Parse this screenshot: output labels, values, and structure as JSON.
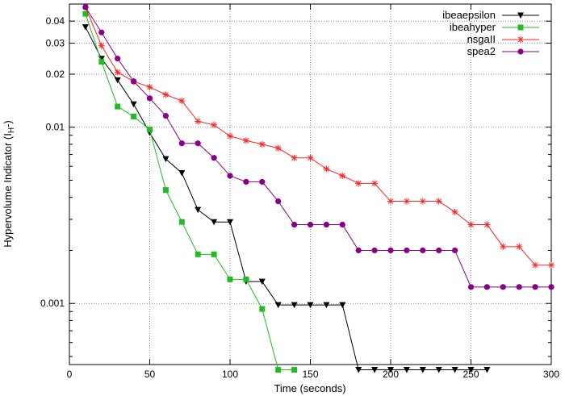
{
  "chart_data": {
    "type": "line",
    "xlabel": "Time (seconds)",
    "ylabel": {
      "main": "Hypervolume Indicator (I",
      "subscript": "H",
      "suffix": "-)"
    },
    "xlim": [
      0,
      300
    ],
    "ylim": [
      0.00045,
      0.05
    ],
    "yscale": "log",
    "grid": true,
    "legend_position": "top-right",
    "x_ticks": [
      {
        "value": 0,
        "label": "0"
      },
      {
        "value": 50,
        "label": "50"
      },
      {
        "value": 100,
        "label": "100"
      },
      {
        "value": 150,
        "label": "150"
      },
      {
        "value": 200,
        "label": "200"
      },
      {
        "value": 250,
        "label": "250"
      },
      {
        "value": 300,
        "label": "300"
      }
    ],
    "y_ticks": [
      {
        "value": 0.04,
        "label": "0.04"
      },
      {
        "value": 0.03,
        "label": "0.03"
      },
      {
        "value": 0.02,
        "label": "0.02"
      },
      {
        "value": 0.01,
        "label": "0.01"
      },
      {
        "value": 0.001,
        "label": "0.001"
      }
    ],
    "y_minor_ticks": [
      0.0005,
      0.0006,
      0.0007,
      0.0008,
      0.0009,
      0.002,
      0.003,
      0.004,
      0.005,
      0.006,
      0.007,
      0.008,
      0.009
    ],
    "series": [
      {
        "name": "ibeaepsilon",
        "color": "#000000",
        "marker": "triangle-down",
        "x": [
          10,
          20,
          30,
          40,
          50,
          60,
          70,
          80,
          90,
          100,
          110,
          120,
          130,
          140,
          150,
          160,
          170,
          180,
          190,
          200,
          210,
          220,
          230,
          240,
          250,
          260
        ],
        "y": [
          0.037,
          0.0245,
          0.0185,
          0.0135,
          0.0093,
          0.0066,
          0.0055,
          0.0034,
          0.0029,
          0.0029,
          0.00133,
          0.00133,
          0.00098,
          0.00098,
          0.00098,
          0.00098,
          0.00098,
          0.00042,
          0.00042,
          0.00042,
          0.00042,
          0.00042,
          0.00042,
          0.00042,
          0.00042,
          0.00042
        ]
      },
      {
        "name": "ibeahyper",
        "color": "#22bb22",
        "marker": "square",
        "x": [
          10,
          20,
          30,
          40,
          50,
          60,
          70,
          80,
          90,
          100,
          110,
          120,
          130,
          140
        ],
        "y": [
          0.044,
          0.0235,
          0.0131,
          0.0115,
          0.0097,
          0.0044,
          0.0029,
          0.0019,
          0.0019,
          0.00137,
          0.00137,
          0.00093,
          0.00042,
          0.00042
        ]
      },
      {
        "name": "nsgaII",
        "color": "#ff2222",
        "marker": "star",
        "x": [
          10,
          20,
          30,
          40,
          50,
          60,
          70,
          80,
          90,
          100,
          110,
          120,
          130,
          140,
          150,
          160,
          170,
          180,
          190,
          200,
          210,
          220,
          230,
          240,
          250,
          260,
          270,
          280,
          290,
          300
        ],
        "y": [
          0.048,
          0.029,
          0.0205,
          0.0182,
          0.0169,
          0.0153,
          0.0141,
          0.0108,
          0.0103,
          0.0089,
          0.0084,
          0.008,
          0.0076,
          0.0067,
          0.0067,
          0.0058,
          0.0053,
          0.0048,
          0.0048,
          0.0038,
          0.0038,
          0.0038,
          0.0038,
          0.0033,
          0.0028,
          0.0028,
          0.0021,
          0.0021,
          0.00165,
          0.00165
        ]
      },
      {
        "name": "spea2",
        "color": "#880088",
        "marker": "circle",
        "x": [
          10,
          20,
          30,
          40,
          50,
          60,
          70,
          80,
          90,
          100,
          110,
          120,
          130,
          140,
          150,
          160,
          170,
          180,
          190,
          200,
          210,
          220,
          230,
          240,
          250,
          260,
          270,
          280,
          290,
          300
        ],
        "y": [
          0.048,
          0.0345,
          0.0245,
          0.0182,
          0.0146,
          0.0116,
          0.0081,
          0.0081,
          0.0067,
          0.0053,
          0.0049,
          0.0049,
          0.0038,
          0.0028,
          0.0028,
          0.0028,
          0.0028,
          0.002,
          0.002,
          0.002,
          0.002,
          0.002,
          0.002,
          0.002,
          0.00124,
          0.00124,
          0.00124,
          0.00124,
          0.00124,
          0.00124
        ]
      }
    ]
  }
}
